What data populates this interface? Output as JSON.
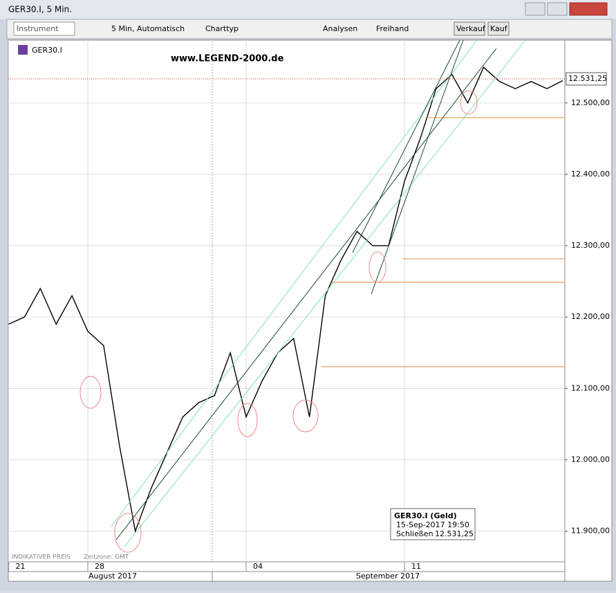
{
  "window": {
    "title": "GER30.I, 5 Min."
  },
  "toolbar": {
    "instrument": "Instrument",
    "interval": "5 Min,  Automatisch",
    "charttype": "Charttyp",
    "analyses": "Analysen",
    "freehand": "Freihand",
    "sell": "Verkauf",
    "buy": "Kauf"
  },
  "chart_header": {
    "symbol": "GER30.I",
    "watermark": "www.LEGEND-2000.de"
  },
  "footer": {
    "indicative": "INDIKATIVER PREIS",
    "timezone": "Zeitzone: GMT",
    "months": [
      "August 2017",
      "September 2017"
    ]
  },
  "price_tag": "12.531,25",
  "tooltip": {
    "title": "GER30.I (Geld)",
    "time": "15-Sep-2017 19:50",
    "close_label": "Schließen",
    "close_value": "12.531,25"
  },
  "chart_data": {
    "type": "line",
    "color": "#000000",
    "grid": true,
    "categories": [
      "21",
      null,
      null,
      null,
      null,
      "28",
      null,
      null,
      null,
      null,
      null,
      null,
      null,
      null,
      null,
      "04",
      null,
      null,
      null,
      null,
      null,
      null,
      null,
      null,
      null,
      "11",
      null,
      null,
      null,
      null,
      null,
      null,
      null,
      null,
      null,
      null
    ],
    "values": [
      12190,
      12200,
      12240,
      12190,
      12230,
      12180,
      12160,
      12020,
      11900,
      11960,
      12010,
      12060,
      12080,
      12090,
      12150,
      12060,
      12110,
      12150,
      12170,
      12060,
      12230,
      12280,
      12320,
      12300,
      12300,
      12390,
      12450,
      12520,
      12540,
      12500,
      12550,
      12530,
      12520,
      12530,
      12520,
      12531.25
    ],
    "ylim": [
      11857,
      12588
    ],
    "yticks": [
      {
        "value": 11900,
        "label": "11.900,00"
      },
      {
        "value": 12000,
        "label": "12.000,00"
      },
      {
        "value": 12100,
        "label": "12.100,00"
      },
      {
        "value": 12200,
        "label": "12.200,00"
      },
      {
        "value": 12300,
        "label": "12.300,00"
      },
      {
        "value": 12400,
        "label": "12.400,00"
      },
      {
        "value": 12500,
        "label": "12.500,00"
      }
    ]
  }
}
